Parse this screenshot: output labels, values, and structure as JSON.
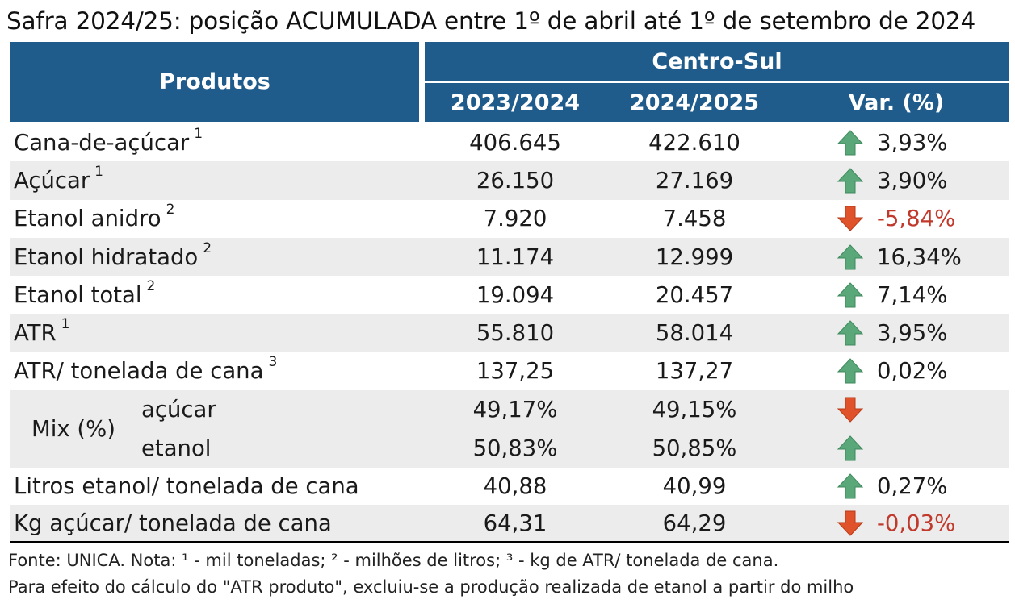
{
  "title": "Safra 2024/25: posição ACUMULADA entre 1º de abril até 1º de setembro de 2024",
  "header": {
    "produtos": "Produtos",
    "region": "Centro-Sul",
    "col1": "2023/2024",
    "col2": "2024/2025",
    "var": "Var. (%)"
  },
  "colors": {
    "header_bg": "#1f5c8c",
    "up_arrow": "#5aa77a",
    "down_arrow": "#e0522a",
    "negative_text": "#c0392b",
    "alt_row": "#ececec"
  },
  "rows": [
    {
      "label": "Cana-de-açúcar",
      "note": "1",
      "v2023": "406.645",
      "v2024": "422.610",
      "direction": "up",
      "var": "3,93%"
    },
    {
      "label": "Açúcar",
      "note": "1",
      "v2023": "26.150",
      "v2024": "27.169",
      "direction": "up",
      "var": "3,90%"
    },
    {
      "label": "Etanol anidro",
      "note": "2",
      "v2023": "7.920",
      "v2024": "7.458",
      "direction": "down",
      "var": "-5,84%"
    },
    {
      "label": "Etanol hidratado",
      "note": "2",
      "v2023": "11.174",
      "v2024": "12.999",
      "direction": "up",
      "var": "16,34%"
    },
    {
      "label": "Etanol total",
      "note": "2",
      "v2023": "19.094",
      "v2024": "20.457",
      "direction": "up",
      "var": "7,14%"
    },
    {
      "label": "ATR",
      "note": "1",
      "v2023": "55.810",
      "v2024": "58.014",
      "direction": "up",
      "var": "3,95%"
    },
    {
      "label": "ATR/ tonelada de cana",
      "note": "3",
      "v2023": "137,25",
      "v2024": "137,27",
      "direction": "up",
      "var": "0,02%"
    }
  ],
  "mix": {
    "label": "Mix (%)",
    "acucar": {
      "label": "açúcar",
      "v2023": "49,17%",
      "v2024": "49,15%",
      "direction": "down"
    },
    "etanol": {
      "label": "etanol",
      "v2023": "50,83%",
      "v2024": "50,85%",
      "direction": "up"
    }
  },
  "rows_after": [
    {
      "label": "Litros etanol/ tonelada de cana",
      "note": "",
      "v2023": "40,88",
      "v2024": "40,99",
      "direction": "up",
      "var": "0,27%"
    },
    {
      "label": "Kg açúcar/ tonelada de cana",
      "note": "",
      "v2023": "64,31",
      "v2024": "64,29",
      "direction": "down",
      "var": "-0,03%"
    }
  ],
  "footnote1": "Fonte: UNICA. Nota: ¹ - mil toneladas; ² - milhões de litros; ³ - kg de ATR/ tonelada de cana.",
  "footnote2": "Para efeito do cálculo do \"ATR produto\", excluiu-se a produção realizada de etanol a partir do milho"
}
